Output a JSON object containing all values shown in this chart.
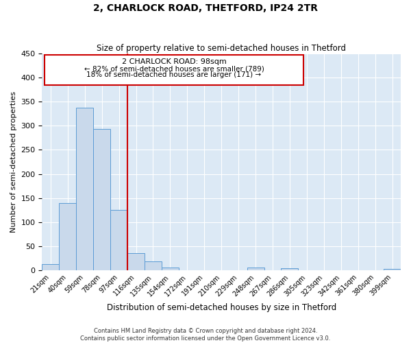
{
  "title": "2, CHARLOCK ROAD, THETFORD, IP24 2TR",
  "subtitle": "Size of property relative to semi-detached houses in Thetford",
  "xlabel": "Distribution of semi-detached houses by size in Thetford",
  "ylabel": "Number of semi-detached properties",
  "bar_labels": [
    "21sqm",
    "40sqm",
    "59sqm",
    "78sqm",
    "97sqm",
    "116sqm",
    "135sqm",
    "154sqm",
    "172sqm",
    "191sqm",
    "210sqm",
    "229sqm",
    "248sqm",
    "267sqm",
    "286sqm",
    "305sqm",
    "323sqm",
    "342sqm",
    "361sqm",
    "380sqm",
    "399sqm"
  ],
  "bar_values": [
    12,
    139,
    337,
    293,
    125,
    35,
    19,
    6,
    0,
    0,
    0,
    0,
    5,
    0,
    4,
    0,
    0,
    0,
    0,
    0,
    2
  ],
  "bar_color": "#c9d9eb",
  "bar_edgecolor": "#5b9bd5",
  "annotation_text_line1": "2 CHARLOCK ROAD: 98sqm",
  "annotation_text_line2": "← 82% of semi-detached houses are smaller (789)",
  "annotation_text_line3": "18% of semi-detached houses are larger (171) →",
  "vline_color": "#cc0000",
  "vline_x_index": 4,
  "ylim": [
    0,
    450
  ],
  "yticks": [
    0,
    50,
    100,
    150,
    200,
    250,
    300,
    350,
    400,
    450
  ],
  "background_color": "#ffffff",
  "plot_bg_color": "#dce9f5",
  "grid_color": "#ffffff",
  "footer_line1": "Contains HM Land Registry data © Crown copyright and database right 2024.",
  "footer_line2": "Contains public sector information licensed under the Open Government Licence v3.0."
}
